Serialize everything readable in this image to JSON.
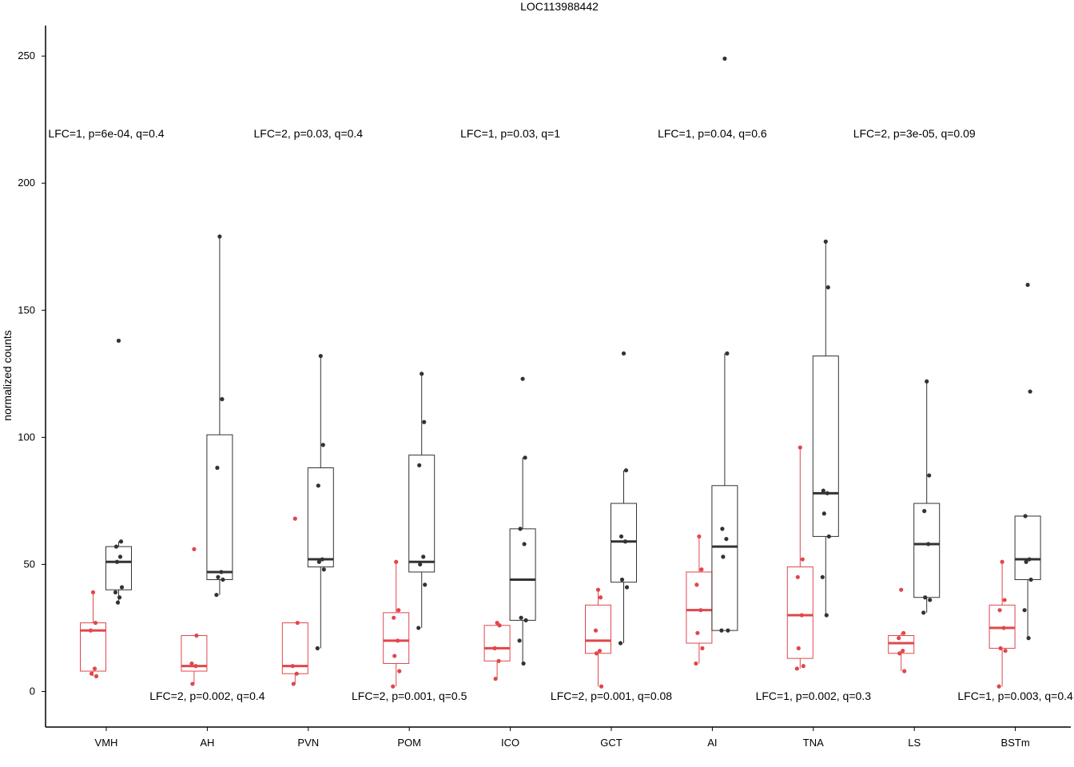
{
  "chart_data": {
    "type": "box",
    "title": "LOC113988442",
    "xlabel": "",
    "ylabel": "normalized counts",
    "ylim": [
      -14,
      262
    ],
    "yticks": [
      0,
      50,
      100,
      150,
      200,
      250
    ],
    "categories": [
      "VMH",
      "AH",
      "PVN",
      "POM",
      "ICO",
      "GCT",
      "AI",
      "TNA",
      "LS",
      "BSTm"
    ],
    "colors": {
      "group1": "#e0474c",
      "group2": "#333333"
    },
    "grid": false,
    "legend": "none",
    "groups": [
      {
        "category": "VMH",
        "boxes": [
          {
            "group": "group1",
            "stats": [
              6,
              8,
              24,
              27,
              39
            ],
            "points": [
              39,
              27,
              24,
              9,
              7,
              6
            ]
          },
          {
            "group": "group2",
            "stats": [
              35,
              40,
              51,
              57,
              59
            ],
            "points": [
              138,
              59,
              57,
              53,
              51,
              41,
              39,
              37,
              35
            ]
          }
        ],
        "annotation": {
          "text": "LFC=1, p=6e-04, q=0.4",
          "position": "top"
        }
      },
      {
        "category": "AH",
        "boxes": [
          {
            "group": "group1",
            "stats": [
              3,
              8,
              10,
              22,
              22
            ],
            "points": [
              56,
              22,
              11,
              10,
              3
            ]
          },
          {
            "group": "group2",
            "stats": [
              38,
              44,
              47,
              101,
              179
            ],
            "points": [
              179,
              115,
              88,
              47,
              45,
              44,
              38
            ]
          }
        ],
        "annotation": {
          "text": "LFC=2, p=0.002, q=0.4",
          "position": "bottom"
        }
      },
      {
        "category": "PVN",
        "boxes": [
          {
            "group": "group1",
            "stats": [
              3,
              7,
              10,
              27,
              27
            ],
            "points": [
              68,
              27,
              10,
              7,
              3
            ]
          },
          {
            "group": "group2",
            "stats": [
              17,
              49,
              52,
              88,
              132
            ],
            "points": [
              132,
              97,
              81,
              52,
              51,
              48,
              17
            ]
          }
        ],
        "annotation": {
          "text": "LFC=2, p=0.03, q=0.4",
          "position": "top"
        }
      },
      {
        "category": "POM",
        "boxes": [
          {
            "group": "group1",
            "stats": [
              2,
              11,
              20,
              31,
              51
            ],
            "points": [
              51,
              32,
              29,
              20,
              14,
              8,
              2
            ]
          },
          {
            "group": "group2",
            "stats": [
              25,
              47,
              51,
              93,
              125
            ],
            "points": [
              125,
              106,
              89,
              53,
              50,
              42,
              25
            ]
          }
        ],
        "annotation": {
          "text": "LFC=2, p=0.001, q=0.5",
          "position": "bottom"
        }
      },
      {
        "category": "ICO",
        "boxes": [
          {
            "group": "group1",
            "stats": [
              5,
              12,
              17,
              26,
              27
            ],
            "points": [
              27,
              26,
              17,
              12,
              5
            ]
          },
          {
            "group": "group2",
            "stats": [
              11,
              28,
              44,
              64,
              92
            ],
            "points": [
              123,
              92,
              64,
              58,
              29,
              28,
              20,
              11
            ]
          }
        ],
        "annotation": {
          "text": "LFC=1, p=0.03, q=1",
          "position": "top"
        }
      },
      {
        "category": "GCT",
        "boxes": [
          {
            "group": "group1",
            "stats": [
              2,
              15,
              20,
              34,
              40
            ],
            "points": [
              40,
              37,
              24,
              16,
              15,
              2
            ]
          },
          {
            "group": "group2",
            "stats": [
              19,
              43,
              59,
              74,
              87
            ],
            "points": [
              133,
              87,
              61,
              59,
              44,
              41,
              19
            ]
          }
        ],
        "annotation": {
          "text": "LFC=2, p=0.001, q=0.08",
          "position": "bottom"
        }
      },
      {
        "category": "AI",
        "boxes": [
          {
            "group": "group1",
            "stats": [
              11,
              19,
              32,
              47,
              61
            ],
            "points": [
              61,
              48,
              42,
              32,
              23,
              17,
              11
            ]
          },
          {
            "group": "group2",
            "stats": [
              24,
              24,
              57,
              81,
              133
            ],
            "points": [
              249,
              133,
              64,
              60,
              53,
              24,
              24
            ]
          }
        ],
        "annotation": {
          "text": "LFC=1, p=0.04, q=0.6",
          "position": "top"
        }
      },
      {
        "category": "TNA",
        "boxes": [
          {
            "group": "group1",
            "stats": [
              9,
              13,
              30,
              49,
              96
            ],
            "points": [
              96,
              52,
              45,
              30,
              17,
              10,
              9
            ]
          },
          {
            "group": "group2",
            "stats": [
              30,
              61,
              78,
              132,
              177
            ],
            "points": [
              177,
              159,
              79,
              78,
              70,
              61,
              45,
              30
            ]
          }
        ],
        "annotation": {
          "text": "LFC=1, p=0.002, q=0.3",
          "position": "bottom"
        }
      },
      {
        "category": "LS",
        "boxes": [
          {
            "group": "group1",
            "stats": [
              8,
              15,
              19,
              22,
              23
            ],
            "points": [
              40,
              23,
              21,
              16,
              15,
              8
            ]
          },
          {
            "group": "group2",
            "stats": [
              31,
              37,
              58,
              74,
              122
            ],
            "points": [
              122,
              85,
              71,
              58,
              37,
              36,
              31
            ]
          }
        ],
        "annotation": {
          "text": "LFC=2, p=3e-05, q=0.09",
          "position": "top"
        }
      },
      {
        "category": "BSTm",
        "boxes": [
          {
            "group": "group1",
            "stats": [
              2,
              17,
              25,
              34,
              51
            ],
            "points": [
              51,
              36,
              32,
              25,
              17,
              16,
              2
            ]
          },
          {
            "group": "group2",
            "stats": [
              21,
              44,
              52,
              69,
              69
            ],
            "points": [
              160,
              118,
              69,
              52,
              51,
              44,
              32,
              21
            ]
          }
        ],
        "annotation": {
          "text": "LFC=1, p=0.003, q=0.4",
          "position": "bottom"
        }
      }
    ]
  }
}
